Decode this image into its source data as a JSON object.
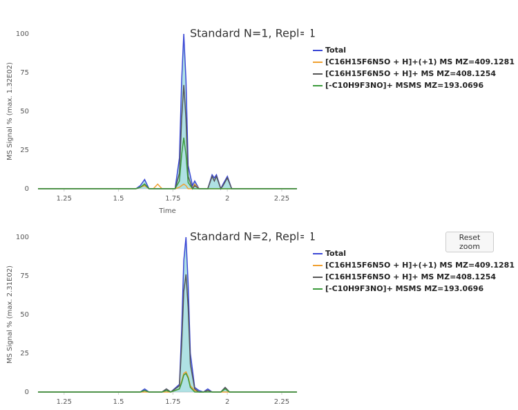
{
  "chart_data": [
    {
      "type": "line",
      "title": "Standard N=1, Repl=1",
      "y_label": "MS Signal % (max. 1.32E02)",
      "x_label": "Time",
      "xlim": [
        1.13,
        2.32
      ],
      "xticks": [
        1.25,
        1.5,
        1.75,
        2,
        2.25
      ],
      "ylim": [
        0,
        100
      ],
      "yticks": [
        0,
        25,
        50,
        75,
        100
      ],
      "grid": false,
      "x": [
        1.13,
        1.58,
        1.6,
        1.62,
        1.64,
        1.66,
        1.68,
        1.7,
        1.76,
        1.78,
        1.79,
        1.8,
        1.81,
        1.82,
        1.84,
        1.85,
        1.87,
        1.91,
        1.93,
        1.94,
        1.95,
        1.97,
        1.98,
        2.0,
        2.02,
        2.32
      ],
      "series": [
        {
          "name": "Total",
          "color": "#3a47d5",
          "values": [
            0,
            0,
            2,
            6,
            0,
            0,
            0,
            0,
            0,
            20,
            70,
            100,
            70,
            15,
            2,
            5,
            0,
            0,
            9,
            7,
            9,
            0,
            3,
            8,
            0,
            0
          ]
        },
        {
          "name": "[C16H15F6N5O + H]+(+1) MS MZ=409.1281",
          "color": "#f0a030",
          "values": [
            0,
            0,
            1,
            2,
            0,
            0,
            3,
            0,
            0,
            1,
            2,
            3,
            2,
            0,
            0,
            3,
            0,
            0,
            0,
            0,
            0,
            0,
            0,
            0,
            0,
            0
          ]
        },
        {
          "name": "[C16H15F6N5O + H]+ MS MZ=408.1254",
          "color": "#555555",
          "values": [
            0,
            0,
            1,
            3,
            0,
            0,
            0,
            0,
            0,
            10,
            45,
            67,
            45,
            8,
            0,
            2,
            0,
            0,
            8,
            5,
            8,
            0,
            2,
            7,
            0,
            0
          ]
        },
        {
          "name": "[-C10H9F3NO]+ MSMS MZ=193.0696",
          "color": "#3a9a3a",
          "values": [
            0,
            0,
            1,
            3,
            0,
            0,
            0,
            0,
            0,
            5,
            22,
            33,
            22,
            4,
            0,
            0,
            0,
            0,
            0,
            0,
            0,
            0,
            0,
            0,
            0,
            0
          ]
        }
      ]
    },
    {
      "type": "line",
      "title": "Standard N=2, Repl=1",
      "y_label": "MS Signal % (max. 2.31E02)",
      "xlim": [
        1.13,
        2.32
      ],
      "xticks": [
        1.25,
        1.5,
        1.75,
        2,
        2.25
      ],
      "ylim": [
        0,
        100
      ],
      "yticks": [
        0,
        25,
        50,
        75,
        100
      ],
      "grid": false,
      "x": [
        1.13,
        1.6,
        1.62,
        1.64,
        1.7,
        1.72,
        1.74,
        1.78,
        1.79,
        1.8,
        1.81,
        1.82,
        1.83,
        1.85,
        1.87,
        1.89,
        1.91,
        1.93,
        1.97,
        1.99,
        2.01,
        2.32
      ],
      "series": [
        {
          "name": "Total",
          "color": "#3a47d5",
          "values": [
            0,
            0,
            2,
            0,
            0,
            2,
            0,
            5,
            40,
            85,
            100,
            70,
            25,
            3,
            1,
            0,
            2,
            0,
            0,
            3,
            0,
            0
          ]
        },
        {
          "name": "[C16H15F6N5O + H]+(+1) MS MZ=409.1281",
          "color": "#f0a030",
          "values": [
            0,
            0,
            0,
            0,
            0,
            0,
            0,
            2,
            7,
            12,
            13,
            10,
            4,
            1,
            0,
            0,
            1,
            0,
            0,
            0,
            0,
            0
          ]
        },
        {
          "name": "[C16H15F6N5O + H]+ MS MZ=408.1254",
          "color": "#555555",
          "values": [
            0,
            0,
            1,
            0,
            0,
            2,
            0,
            4,
            30,
            65,
            76,
            55,
            18,
            2,
            0,
            0,
            1,
            0,
            0,
            3,
            0,
            0
          ]
        },
        {
          "name": "[-C10H9F3NO]+ MSMS MZ=193.0696",
          "color": "#3a9a3a",
          "values": [
            0,
            0,
            1,
            0,
            0,
            1,
            0,
            2,
            6,
            11,
            12,
            9,
            3,
            0,
            0,
            0,
            0,
            0,
            0,
            2,
            0,
            0
          ]
        }
      ]
    }
  ],
  "reset_button": "Reset zoom"
}
